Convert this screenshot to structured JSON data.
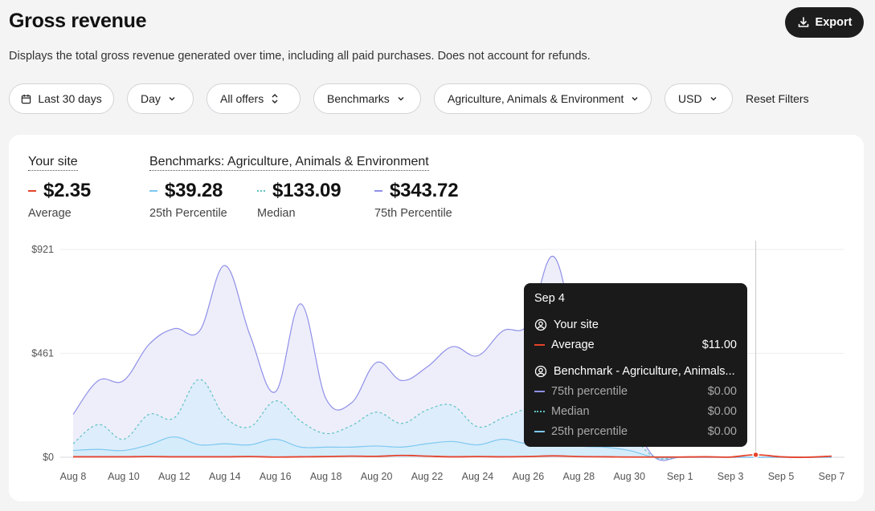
{
  "header": {
    "title": "Gross revenue",
    "subtitle": "Displays the total gross revenue generated over time, including all paid purchases. Does not account for refunds.",
    "export_label": "Export"
  },
  "filters": {
    "date_range": "Last 30 days",
    "granularity": "Day",
    "offers": "All offers",
    "benchmarks": "Benchmarks",
    "category": "Agriculture, Animals & Environment",
    "currency": "USD",
    "reset_label": "Reset Filters"
  },
  "summary": {
    "your_site_heading": "Your site",
    "benchmarks_heading": "Benchmarks: Agriculture, Animals & Environment",
    "stats": [
      {
        "value": "$2.35",
        "label": "Average",
        "color": "#e5432c"
      },
      {
        "value": "$39.28",
        "label": "25th Percentile",
        "color": "#7cc8f0"
      },
      {
        "value": "$133.09",
        "label": "Median",
        "color": "#5ec3c3"
      },
      {
        "value": "$343.72",
        "label": "75th Percentile",
        "color": "#8f8fe8"
      }
    ]
  },
  "tooltip": {
    "date": "Sep 4",
    "your_site_label": "Your site",
    "average_label": "Average",
    "average_value": "$11.00",
    "benchmark_label": "Benchmark - Agriculture, Animals...",
    "rows": [
      {
        "label": "75th percentile",
        "value": "$0.00"
      },
      {
        "label": "Median",
        "value": "$0.00"
      },
      {
        "label": "25th percentile",
        "value": "$0.00"
      }
    ]
  },
  "chart_data": {
    "type": "area",
    "ylim": [
      0,
      921
    ],
    "y_ticks": [
      "$921",
      "$461",
      "$0"
    ],
    "y_tick_values": [
      921,
      461,
      0
    ],
    "x_labels": [
      "Aug 8",
      "Aug 10",
      "Aug 12",
      "Aug 14",
      "Aug 16",
      "Aug 18",
      "Aug 20",
      "Aug 22",
      "Aug 24",
      "Aug 26",
      "Aug 28",
      "Aug 30",
      "Sep 1",
      "Sep 3",
      "Sep 5",
      "Sep 7"
    ],
    "dates": [
      "Aug 8",
      "Aug 9",
      "Aug 10",
      "Aug 11",
      "Aug 12",
      "Aug 13",
      "Aug 14",
      "Aug 15",
      "Aug 16",
      "Aug 17",
      "Aug 18",
      "Aug 19",
      "Aug 20",
      "Aug 21",
      "Aug 22",
      "Aug 23",
      "Aug 24",
      "Aug 25",
      "Aug 26",
      "Aug 27",
      "Aug 28",
      "Aug 29",
      "Aug 30",
      "Aug 31",
      "Sep 1",
      "Sep 2",
      "Sep 3",
      "Sep 4",
      "Sep 5",
      "Sep 6",
      "Sep 7"
    ],
    "series": [
      {
        "name": "75th percentile",
        "color": "#8f8fe8",
        "values": [
          190,
          340,
          340,
          500,
          570,
          560,
          850,
          540,
          290,
          680,
          260,
          240,
          420,
          340,
          400,
          490,
          450,
          560,
          590,
          890,
          480,
          300,
          180,
          0,
          0,
          0,
          0,
          0,
          0,
          0,
          0
        ]
      },
      {
        "name": "Median",
        "color": "#5ec3c3",
        "values": [
          60,
          145,
          80,
          190,
          175,
          345,
          180,
          135,
          250,
          160,
          105,
          140,
          200,
          150,
          210,
          230,
          135,
          175,
          220,
          260,
          90,
          120,
          100,
          0,
          0,
          0,
          0,
          0,
          0,
          0,
          0
        ]
      },
      {
        "name": "25th percentile",
        "color": "#7cc8f0",
        "values": [
          30,
          35,
          30,
          55,
          90,
          55,
          60,
          55,
          80,
          45,
          45,
          45,
          50,
          45,
          60,
          70,
          55,
          80,
          60,
          75,
          50,
          45,
          30,
          0,
          0,
          0,
          0,
          0,
          0,
          0,
          0
        ]
      },
      {
        "name": "Average",
        "color": "#e5432c",
        "values": [
          2,
          2,
          2,
          3,
          2,
          2,
          2,
          3,
          1,
          2,
          3,
          5,
          4,
          8,
          5,
          2,
          3,
          2,
          3,
          6,
          3,
          2,
          1,
          1,
          1,
          2,
          1,
          11,
          2,
          0,
          5
        ]
      }
    ],
    "highlight_date": "Sep 4"
  }
}
